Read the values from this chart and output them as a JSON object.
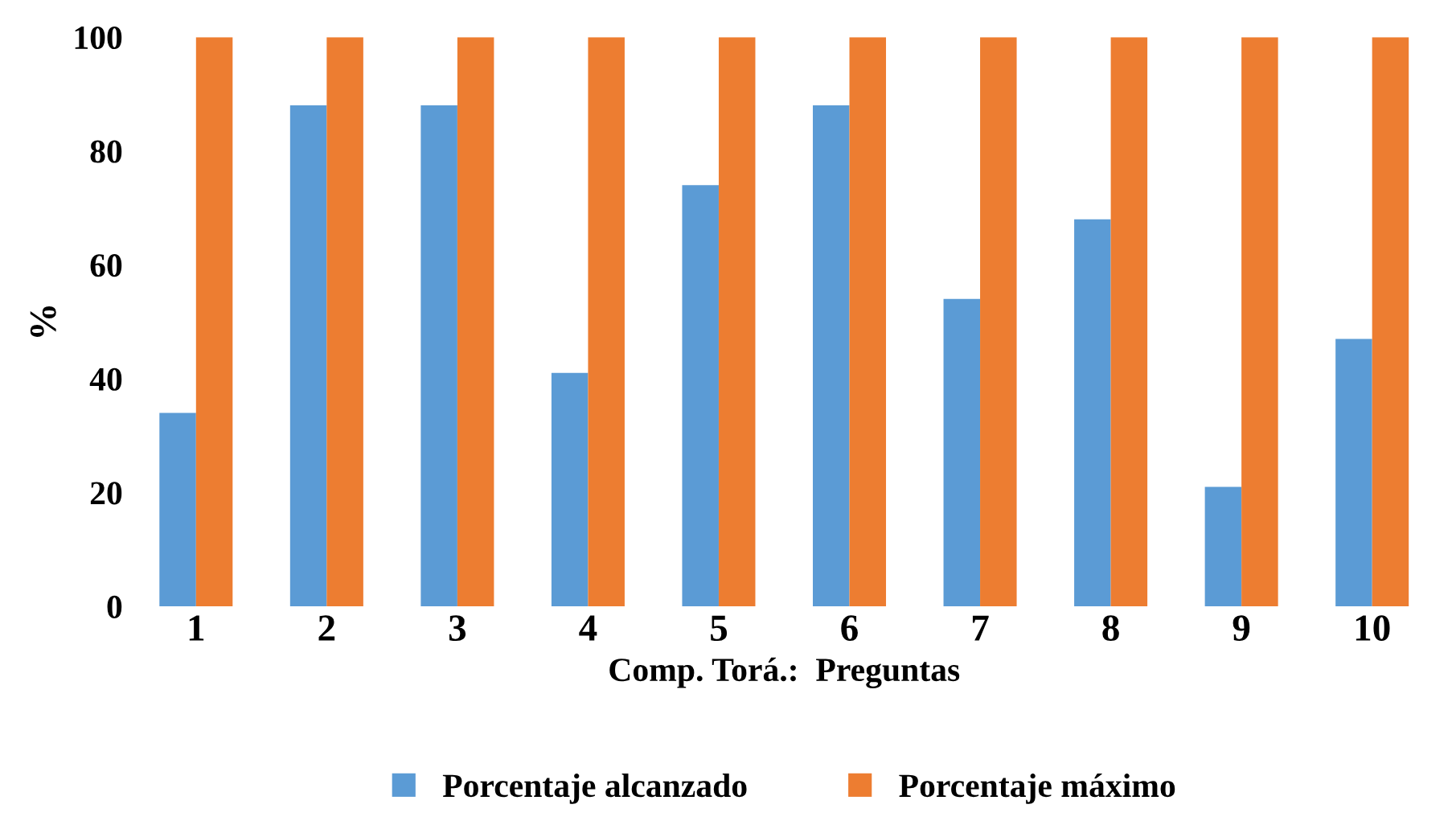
{
  "chart_data": {
    "type": "bar",
    "xlabel": "Comp. Torá.:  Preguntas",
    "ylabel": "%",
    "categories": [
      "1",
      "2",
      "3",
      "4",
      "5",
      "6",
      "7",
      "8",
      "9",
      "10"
    ],
    "series": [
      {
        "name": "Porcentaje alcanzado",
        "color": "#5b9bd5",
        "values": [
          34,
          88,
          88,
          41,
          74,
          88,
          54,
          68,
          21,
          47
        ]
      },
      {
        "name": "Porcentaje máximo",
        "color": "#ed7d31",
        "values": [
          100,
          100,
          100,
          100,
          100,
          100,
          100,
          100,
          100,
          100
        ]
      }
    ],
    "ylim": [
      0,
      100
    ],
    "yticks": [
      0,
      20,
      40,
      60,
      80,
      100
    ],
    "legend": "bottom"
  }
}
